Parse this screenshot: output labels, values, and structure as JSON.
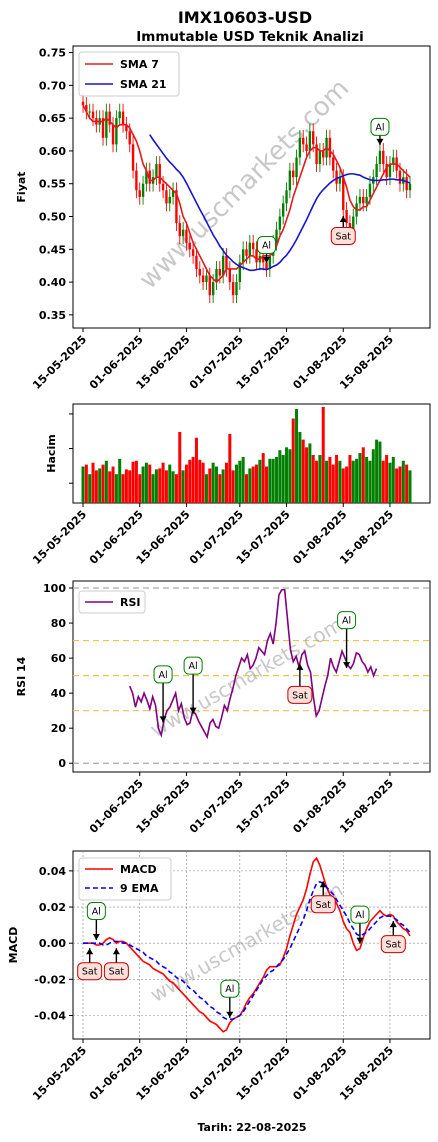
{
  "header": {
    "title": "IMX10603-USD",
    "subtitle": "Immutable USD Teknik Analizi"
  },
  "footer": {
    "date_label": "Tarih: 22-08-2025"
  },
  "watermark": "www.uscmarkets.com",
  "colors": {
    "up": "#008000",
    "down": "#ff0000",
    "sma7": "#e31a1c",
    "sma21": "#1515d0",
    "rsi": "#800080",
    "macd": "#ff0000",
    "ema": "#0000ff"
  },
  "chart_data": [
    {
      "type": "candlestick",
      "ylabel": "Fiyat",
      "ylim": [
        0.33,
        0.76
      ],
      "yticks": [
        "0.35",
        "0.40",
        "0.45",
        "0.50",
        "0.55",
        "0.60",
        "0.65",
        "0.70",
        "0.75"
      ],
      "ytick_values": [
        0.35,
        0.4,
        0.45,
        0.5,
        0.55,
        0.6,
        0.65,
        0.7,
        0.75
      ],
      "xticks": [
        "15-05-2025",
        "01-06-2025",
        "15-06-2025",
        "01-07-2025",
        "15-07-2025",
        "01-08-2025",
        "15-08-2025"
      ],
      "xtick_days": [
        0,
        17,
        31,
        47,
        61,
        78,
        92
      ],
      "xlim": [
        -3,
        104
      ],
      "legend": {
        "position": "top-left",
        "entries": [
          "SMA 7",
          "SMA 21"
        ]
      },
      "close": [
        0.67,
        0.66,
        0.66,
        0.65,
        0.64,
        0.65,
        0.62,
        0.66,
        0.64,
        0.61,
        0.65,
        0.66,
        0.64,
        0.63,
        0.61,
        0.57,
        0.54,
        0.53,
        0.55,
        0.57,
        0.55,
        0.56,
        0.58,
        0.55,
        0.54,
        0.52,
        0.53,
        0.54,
        0.49,
        0.47,
        0.48,
        0.46,
        0.45,
        0.44,
        0.42,
        0.41,
        0.4,
        0.41,
        0.38,
        0.4,
        0.42,
        0.41,
        0.44,
        0.42,
        0.4,
        0.38,
        0.4,
        0.43,
        0.45,
        0.44,
        0.46,
        0.45,
        0.43,
        0.44,
        0.43,
        0.42,
        0.44,
        0.46,
        0.48,
        0.5,
        0.52,
        0.54,
        0.57,
        0.56,
        0.59,
        0.62,
        0.61,
        0.6,
        0.63,
        0.61,
        0.58,
        0.6,
        0.59,
        0.62,
        0.59,
        0.57,
        0.55,
        0.56,
        0.51,
        0.49,
        0.48,
        0.5,
        0.52,
        0.53,
        0.52,
        0.53,
        0.55,
        0.56,
        0.58,
        0.6,
        0.58,
        0.56,
        0.58,
        0.59,
        0.57,
        0.55,
        0.56,
        0.54,
        0.55
      ],
      "sma7": [
        0.67,
        0.66,
        0.65,
        0.645,
        0.645,
        0.645,
        0.645,
        0.65,
        0.645,
        0.64,
        0.635,
        0.64,
        0.64,
        0.64,
        0.635,
        0.625,
        0.615,
        0.6,
        0.58,
        0.57,
        0.555,
        0.555,
        0.56,
        0.56,
        0.555,
        0.55,
        0.545,
        0.54,
        0.535,
        0.52,
        0.5,
        0.49,
        0.475,
        0.46,
        0.45,
        0.44,
        0.43,
        0.42,
        0.41,
        0.405,
        0.4,
        0.405,
        0.41,
        0.42,
        0.42,
        0.42,
        0.42,
        0.425,
        0.43,
        0.435,
        0.44,
        0.44,
        0.435,
        0.435,
        0.44,
        0.44,
        0.44,
        0.445,
        0.455,
        0.47,
        0.48,
        0.495,
        0.51,
        0.53,
        0.545,
        0.56,
        0.575,
        0.59,
        0.6,
        0.605,
        0.605,
        0.6,
        0.6,
        0.605,
        0.6,
        0.595,
        0.585,
        0.575,
        0.56,
        0.545,
        0.525,
        0.515,
        0.51,
        0.51,
        0.515,
        0.515,
        0.525,
        0.535,
        0.545,
        0.555,
        0.565,
        0.575,
        0.58,
        0.58,
        0.58,
        0.575,
        0.57,
        0.565,
        0.56
      ],
      "sma21_start": 20,
      "sma21": [
        0.625,
        0.617,
        0.61,
        0.603,
        0.596,
        0.589,
        0.583,
        0.578,
        0.572,
        0.567,
        0.56,
        0.551,
        0.541,
        0.531,
        0.521,
        0.511,
        0.502,
        0.492,
        0.482,
        0.472,
        0.464,
        0.455,
        0.448,
        0.441,
        0.436,
        0.431,
        0.427,
        0.424,
        0.422,
        0.42,
        0.418,
        0.418,
        0.419,
        0.42,
        0.42,
        0.419,
        0.421,
        0.424,
        0.426,
        0.43,
        0.436,
        0.441,
        0.448,
        0.456,
        0.465,
        0.475,
        0.485,
        0.495,
        0.506,
        0.517,
        0.527,
        0.535,
        0.541,
        0.546,
        0.551,
        0.555,
        0.558,
        0.56,
        0.562,
        0.564,
        0.565,
        0.565,
        0.564,
        0.563,
        0.56,
        0.558,
        0.556,
        0.555,
        0.555,
        0.555,
        0.556,
        0.556,
        0.557,
        0.557,
        0.556,
        0.556,
        0.555,
        0.553,
        0.551
      ],
      "signals": [
        {
          "day": 55,
          "label": "Al"
        },
        {
          "day": 78,
          "label": "Sat"
        },
        {
          "day": 89,
          "label": "Al"
        }
      ]
    },
    {
      "type": "bar",
      "ylabel": "Hacim",
      "xticks": [
        "15-05-2025",
        "01-06-2025",
        "15-06-2025",
        "01-07-2025",
        "15-07-2025",
        "01-08-2025",
        "15-08-2025"
      ],
      "values": [
        0.38,
        0.4,
        0.3,
        0.42,
        0.34,
        0.36,
        0.4,
        0.44,
        0.33,
        0.38,
        0.3,
        0.46,
        0.3,
        0.35,
        0.34,
        0.43,
        0.44,
        0.3,
        0.38,
        0.42,
        0.4,
        0.3,
        0.35,
        0.36,
        0.42,
        0.34,
        0.4,
        0.33,
        0.3,
        0.74,
        0.34,
        0.4,
        0.45,
        0.48,
        0.68,
        0.45,
        0.42,
        0.3,
        0.36,
        0.42,
        0.38,
        0.3,
        0.35,
        0.42,
        0.72,
        0.34,
        0.4,
        0.44,
        0.48,
        0.3,
        0.36,
        0.38,
        0.4,
        0.45,
        0.52,
        0.38,
        0.46,
        0.46,
        0.48,
        0.55,
        0.5,
        0.58,
        0.56,
        0.88,
        0.98,
        0.74,
        0.66,
        0.58,
        0.62,
        0.5,
        0.44,
        0.5,
        1.0,
        0.44,
        0.48,
        0.4,
        0.5,
        0.44,
        0.36,
        0.38,
        0.5,
        0.44,
        0.46,
        0.52,
        0.58,
        0.48,
        0.44,
        0.56,
        0.66,
        0.64,
        0.44,
        0.5,
        0.42,
        0.48,
        0.36,
        0.38,
        0.44,
        0.4,
        0.34
      ]
    },
    {
      "type": "line",
      "ylabel": "RSI 14",
      "ylim": [
        -5,
        104
      ],
      "yticks": [
        "0",
        "20",
        "40",
        "60",
        "80",
        "100"
      ],
      "ytick_values": [
        0,
        20,
        40,
        60,
        80,
        100
      ],
      "hlines": [
        0,
        30,
        50,
        70,
        100
      ],
      "xticks": [
        "01-06-2025",
        "15-06-2025",
        "01-07-2025",
        "15-07-2025",
        "01-08-2025",
        "15-08-2025"
      ],
      "xtick_days": [
        17,
        31,
        47,
        61,
        78,
        92
      ],
      "x_start_day": 14,
      "legend": {
        "position": "top-left",
        "entries": [
          "RSI"
        ]
      },
      "values": [
        44,
        40,
        32,
        38,
        35,
        40,
        36,
        31,
        38,
        33,
        20,
        16,
        25,
        30,
        32,
        36,
        40,
        30,
        34,
        26,
        22,
        23,
        30,
        28,
        24,
        21,
        18,
        15,
        23,
        25,
        21,
        20,
        26,
        33,
        30,
        37,
        43,
        50,
        55,
        60,
        58,
        62,
        54,
        56,
        60,
        66,
        64,
        62,
        70,
        74,
        68,
        80,
        96,
        99,
        99,
        82,
        65,
        58,
        61,
        55,
        62,
        64,
        56,
        52,
        38,
        27,
        30,
        37,
        44,
        50,
        60,
        55,
        52,
        58,
        64,
        60,
        56,
        54,
        57,
        63,
        62,
        58,
        56,
        52,
        55,
        50,
        54
      ],
      "signals": [
        {
          "day": 24,
          "label": "Al"
        },
        {
          "day": 33,
          "label": "Al"
        },
        {
          "day": 65,
          "label": "Sat"
        },
        {
          "day": 79,
          "label": "Al"
        }
      ]
    },
    {
      "type": "line",
      "ylabel": "MACD",
      "xlabel": "Tarih: 22-08-2025",
      "ylim": [
        -0.053,
        0.051
      ],
      "yticks": [
        "-0.04",
        "-0.02",
        "0.00",
        "0.02",
        "0.04"
      ],
      "ytick_values": [
        -0.04,
        -0.02,
        0.0,
        0.02,
        0.04
      ],
      "xticks": [
        "15-05-2025",
        "01-06-2025",
        "15-06-2025",
        "01-07-2025",
        "15-07-2025",
        "01-08-2025",
        "15-08-2025"
      ],
      "xtick_days": [
        0,
        17,
        31,
        47,
        61,
        78,
        92
      ],
      "legend": {
        "position": "top-left",
        "entries": [
          "MACD",
          "9 EMA"
        ]
      },
      "macd": [
        0.0,
        0.0,
        0.0,
        0.0,
        -0.001,
        -0.001,
        0.0,
        0.002,
        0.003,
        0.002,
        0.0,
        0.001,
        0.001,
        0.0,
        -0.002,
        -0.004,
        -0.006,
        -0.008,
        -0.01,
        -0.011,
        -0.012,
        -0.014,
        -0.015,
        -0.016,
        -0.017,
        -0.019,
        -0.021,
        -0.022,
        -0.024,
        -0.026,
        -0.028,
        -0.03,
        -0.032,
        -0.034,
        -0.036,
        -0.038,
        -0.039,
        -0.041,
        -0.043,
        -0.044,
        -0.045,
        -0.047,
        -0.049,
        -0.048,
        -0.044,
        -0.042,
        -0.041,
        -0.04,
        -0.037,
        -0.033,
        -0.03,
        -0.028,
        -0.025,
        -0.022,
        -0.019,
        -0.015,
        -0.013,
        -0.013,
        -0.013,
        -0.012,
        -0.008,
        -0.003,
        0.004,
        0.01,
        0.016,
        0.02,
        0.024,
        0.03,
        0.038,
        0.045,
        0.047,
        0.043,
        0.037,
        0.031,
        0.027,
        0.025,
        0.022,
        0.018,
        0.012,
        0.008,
        0.006,
        0.0,
        -0.004,
        -0.003,
        0.003,
        0.008,
        0.012,
        0.014,
        0.016,
        0.018,
        0.016,
        0.015,
        0.016,
        0.015,
        0.012,
        0.01,
        0.008,
        0.007,
        0.004
      ],
      "ema": [
        0.0,
        0.0,
        0.0,
        0.0,
        0.0,
        0.0,
        -0.001,
        -0.001,
        0.0,
        0.001,
        0.001,
        0.001,
        0.0,
        0.0,
        -0.001,
        -0.002,
        -0.003,
        -0.004,
        -0.005,
        -0.007,
        -0.008,
        -0.009,
        -0.01,
        -0.012,
        -0.013,
        -0.014,
        -0.016,
        -0.017,
        -0.019,
        -0.02,
        -0.021,
        -0.023,
        -0.025,
        -0.026,
        -0.028,
        -0.03,
        -0.031,
        -0.033,
        -0.035,
        -0.036,
        -0.038,
        -0.039,
        -0.041,
        -0.042,
        -0.042,
        -0.042,
        -0.041,
        -0.04,
        -0.038,
        -0.035,
        -0.032,
        -0.029,
        -0.026,
        -0.023,
        -0.02,
        -0.018,
        -0.016,
        -0.015,
        -0.013,
        -0.011,
        -0.009,
        -0.006,
        -0.003,
        0.001,
        0.005,
        0.009,
        0.013,
        0.018,
        0.024,
        0.029,
        0.033,
        0.034,
        0.033,
        0.031,
        0.029,
        0.027,
        0.024,
        0.021,
        0.018,
        0.015,
        0.011,
        0.008,
        0.005,
        0.004,
        0.005,
        0.006,
        0.008,
        0.01,
        0.012,
        0.014,
        0.015,
        0.015,
        0.015,
        0.014,
        0.013,
        0.011,
        0.01,
        0.008,
        0.006
      ],
      "signals": [
        {
          "day": 2,
          "label": "Sat",
          "dir": "down"
        },
        {
          "day": 4,
          "label": "Al",
          "dir": "up"
        },
        {
          "day": 10,
          "label": "Sat",
          "dir": "down"
        },
        {
          "day": 44,
          "label": "Al",
          "dir": "up"
        },
        {
          "day": 72,
          "label": "Sat",
          "dir": "down"
        },
        {
          "day": 83,
          "label": "Al",
          "dir": "up"
        },
        {
          "day": 93,
          "label": "Sat",
          "dir": "down"
        }
      ]
    }
  ]
}
